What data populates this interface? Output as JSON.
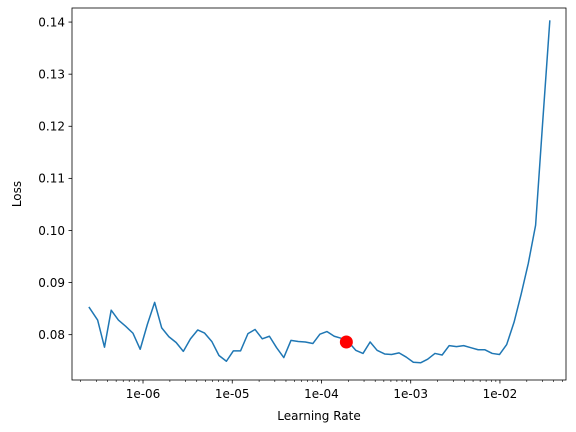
{
  "chart_data": {
    "type": "line",
    "xlabel": "Learning Rate",
    "ylabel": "Loss",
    "xscale": "log",
    "xlim": [
      1.6e-07,
      0.055
    ],
    "ylim": [
      0.0713,
      0.1427
    ],
    "grid": false,
    "x_ticks": [
      {
        "value": 1e-06,
        "label": "1e-06"
      },
      {
        "value": 1e-05,
        "label": "1e-05"
      },
      {
        "value": 0.0001,
        "label": "1e-04"
      },
      {
        "value": 0.001,
        "label": "1e-03"
      },
      {
        "value": 0.01,
        "label": "1e-02"
      }
    ],
    "y_ticks": [
      {
        "value": 0.08,
        "label": "0.08"
      },
      {
        "value": 0.09,
        "label": "0.09"
      },
      {
        "value": 0.1,
        "label": "0.10"
      },
      {
        "value": 0.11,
        "label": "0.11"
      },
      {
        "value": 0.12,
        "label": "0.12"
      },
      {
        "value": 0.13,
        "label": "0.13"
      },
      {
        "value": 0.14,
        "label": "0.14"
      }
    ],
    "series": [
      {
        "color": "#1f77b4",
        "x": [
          2.5e-07,
          3.1e-07,
          3.7e-07,
          4.4e-07,
          5.3e-07,
          6.4e-07,
          7.7e-07,
          9.3e-07,
          1.12e-06,
          1.35e-06,
          1.62e-06,
          1.95e-06,
          2.35e-06,
          2.83e-06,
          3.4e-06,
          4.1e-06,
          4.9e-06,
          5.9e-06,
          7.1e-06,
          8.6e-06,
          1.03e-05,
          1.24e-05,
          1.5e-05,
          1.8e-05,
          2.17e-05,
          2.61e-05,
          3.14e-05,
          3.78e-05,
          4.55e-05,
          5.5e-05,
          6.6e-05,
          8e-05,
          9.6e-05,
          0.000115,
          0.000139,
          0.000167,
          0.000201,
          0.000242,
          0.000292,
          0.000351,
          0.00042,
          0.00051,
          0.00061,
          0.00074,
          0.00089,
          0.00107,
          0.00129,
          0.00155,
          0.00187,
          0.00225,
          0.0027,
          0.00326,
          0.00392,
          0.00472,
          0.0057,
          0.0068,
          0.0082,
          0.0099,
          0.0119,
          0.0144,
          0.0173,
          0.0208,
          0.0251,
          0.03,
          0.0362
        ],
        "y": [
          0.0852,
          0.0828,
          0.0776,
          0.0847,
          0.0828,
          0.0816,
          0.0803,
          0.0772,
          0.082,
          0.0862,
          0.0813,
          0.0796,
          0.0785,
          0.0768,
          0.0792,
          0.0809,
          0.0803,
          0.0787,
          0.076,
          0.0749,
          0.0769,
          0.0769,
          0.0802,
          0.081,
          0.0792,
          0.0797,
          0.0775,
          0.0756,
          0.0789,
          0.0787,
          0.0786,
          0.0783,
          0.0801,
          0.0806,
          0.0797,
          0.0793,
          0.0786,
          0.077,
          0.0764,
          0.0786,
          0.077,
          0.0763,
          0.0762,
          0.0765,
          0.0757,
          0.0747,
          0.0746,
          0.0753,
          0.0764,
          0.0761,
          0.0779,
          0.0777,
          0.0779,
          0.0775,
          0.0771,
          0.0771,
          0.0764,
          0.0762,
          0.0781,
          0.0824,
          0.0878,
          0.0937,
          0.101,
          0.1203,
          0.1402
        ]
      }
    ],
    "highlight_point": {
      "x": 0.00019,
      "y": 0.0786,
      "color": "#ff0000"
    }
  }
}
